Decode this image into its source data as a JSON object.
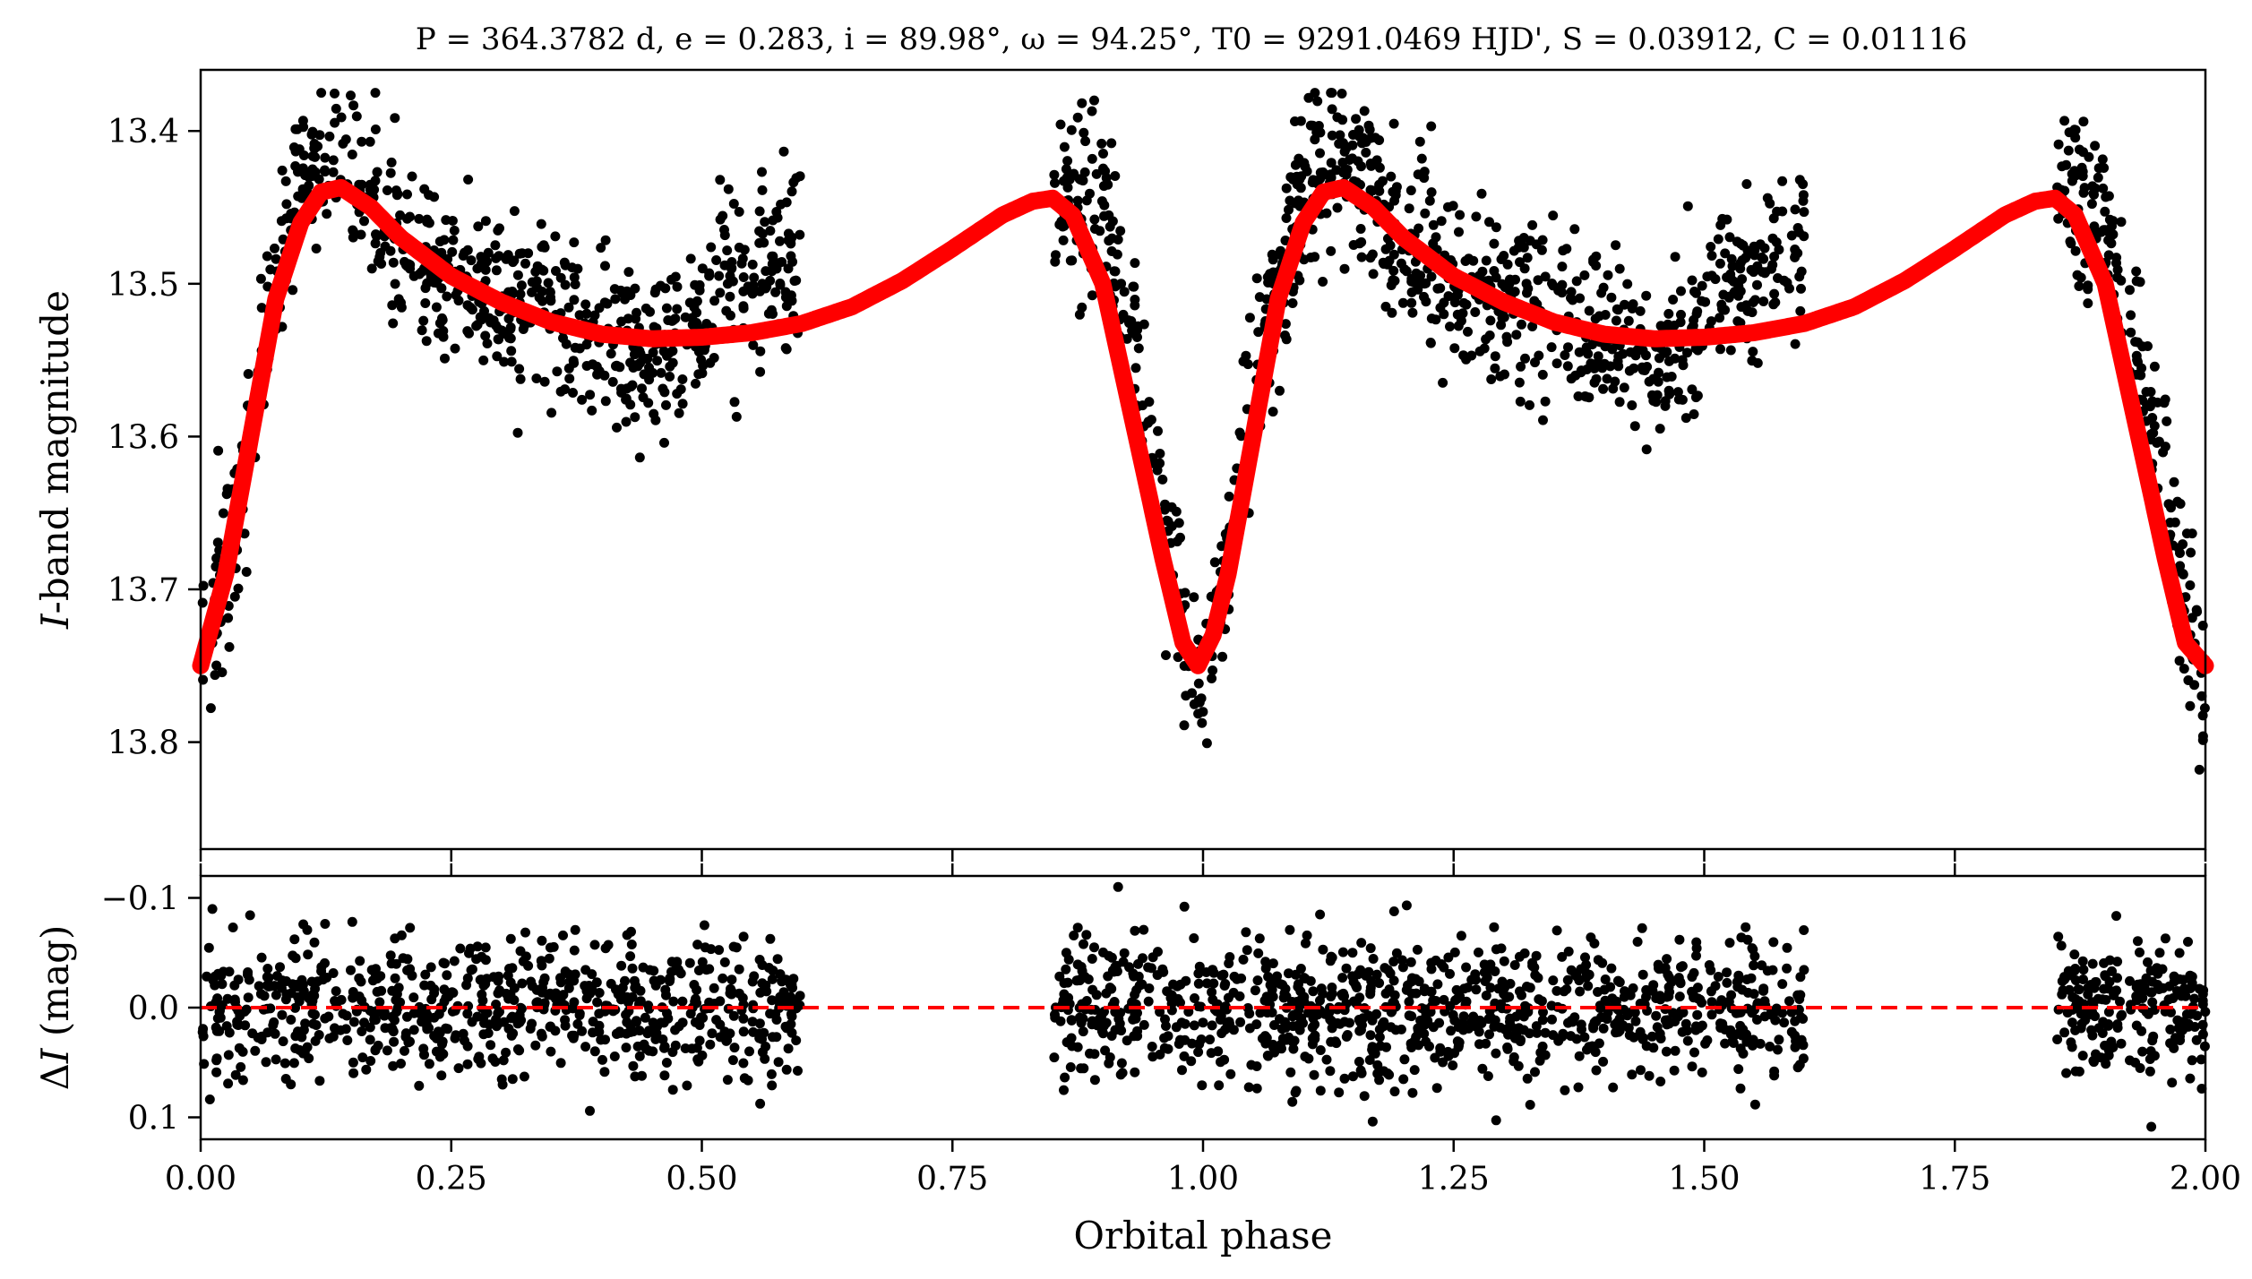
{
  "figure": {
    "title": "P = 364.3782 d, e = 0.283, i = 89.98°, ω = 94.25°, T0 = 9291.0469 HJD', S = 0.03912, C = 0.01116"
  },
  "chart_data": [
    {
      "panel": "top",
      "type": "scatter",
      "xlabel": "",
      "ylabel": "I-band magnitude",
      "xlim": [
        0.0,
        2.0
      ],
      "ylim": [
        13.87,
        13.36
      ],
      "y_inverted": true,
      "yticks": [
        "13.4",
        "13.5",
        "13.6",
        "13.7",
        "13.8"
      ],
      "ytick_values": [
        13.4,
        13.5,
        13.6,
        13.7,
        13.8
      ],
      "colors": {
        "points": "#000000",
        "model": "#ff0000"
      },
      "series": [
        {
          "type": "scatter",
          "phase_coverage": [
            [
              0.0,
              0.6
            ],
            [
              0.85,
              1.6
            ],
            [
              1.85,
              2.0
            ]
          ],
          "binned_mean": [
            {
              "x": 0.0,
              "y": 13.75
            },
            {
              "x": 0.02,
              "y": 13.7
            },
            {
              "x": 0.04,
              "y": 13.64
            },
            {
              "x": 0.06,
              "y": 13.56
            },
            {
              "x": 0.08,
              "y": 13.49
            },
            {
              "x": 0.1,
              "y": 13.44
            },
            {
              "x": 0.12,
              "y": 13.42
            },
            {
              "x": 0.14,
              "y": 13.42
            },
            {
              "x": 0.16,
              "y": 13.44
            },
            {
              "x": 0.2,
              "y": 13.47
            },
            {
              "x": 0.25,
              "y": 13.5
            },
            {
              "x": 0.3,
              "y": 13.51
            },
            {
              "x": 0.35,
              "y": 13.52
            },
            {
              "x": 0.4,
              "y": 13.54
            },
            {
              "x": 0.45,
              "y": 13.55
            },
            {
              "x": 0.48,
              "y": 13.54
            },
            {
              "x": 0.52,
              "y": 13.5
            },
            {
              "x": 0.56,
              "y": 13.5
            },
            {
              "x": 0.6,
              "y": 13.47
            },
            {
              "x": 0.86,
              "y": 13.44
            },
            {
              "x": 0.9,
              "y": 13.46
            },
            {
              "x": 0.93,
              "y": 13.54
            },
            {
              "x": 0.95,
              "y": 13.6
            },
            {
              "x": 0.97,
              "y": 13.68
            },
            {
              "x": 0.99,
              "y": 13.77
            },
            {
              "x": 1.01,
              "y": 13.74
            },
            {
              "x": 1.03,
              "y": 13.65
            },
            {
              "x": 1.05,
              "y": 13.58
            },
            {
              "x": 1.07,
              "y": 13.51
            },
            {
              "x": 1.1,
              "y": 13.44
            },
            {
              "x": 1.12,
              "y": 13.42
            },
            {
              "x": 1.14,
              "y": 13.42
            },
            {
              "x": 1.16,
              "y": 13.44
            },
            {
              "x": 1.2,
              "y": 13.47
            },
            {
              "x": 1.25,
              "y": 13.5
            },
            {
              "x": 1.3,
              "y": 13.51
            },
            {
              "x": 1.35,
              "y": 13.52
            },
            {
              "x": 1.4,
              "y": 13.54
            },
            {
              "x": 1.45,
              "y": 13.55
            },
            {
              "x": 1.48,
              "y": 13.54
            },
            {
              "x": 1.52,
              "y": 13.5
            },
            {
              "x": 1.56,
              "y": 13.5
            },
            {
              "x": 1.6,
              "y": 13.47
            },
            {
              "x": 1.86,
              "y": 13.44
            },
            {
              "x": 1.9,
              "y": 13.46
            },
            {
              "x": 1.93,
              "y": 13.54
            },
            {
              "x": 1.95,
              "y": 13.6
            },
            {
              "x": 1.97,
              "y": 13.68
            },
            {
              "x": 2.0,
              "y": 13.77
            }
          ]
        },
        {
          "type": "line",
          "points": [
            {
              "x": 0.0,
              "y": 13.75
            },
            {
              "x": 0.025,
              "y": 13.69
            },
            {
              "x": 0.05,
              "y": 13.6
            },
            {
              "x": 0.075,
              "y": 13.51
            },
            {
              "x": 0.1,
              "y": 13.46
            },
            {
              "x": 0.12,
              "y": 13.44
            },
            {
              "x": 0.14,
              "y": 13.437
            },
            {
              "x": 0.17,
              "y": 13.45
            },
            {
              "x": 0.2,
              "y": 13.47
            },
            {
              "x": 0.25,
              "y": 13.495
            },
            {
              "x": 0.3,
              "y": 13.512
            },
            {
              "x": 0.35,
              "y": 13.525
            },
            {
              "x": 0.4,
              "y": 13.533
            },
            {
              "x": 0.45,
              "y": 13.536
            },
            {
              "x": 0.5,
              "y": 13.535
            },
            {
              "x": 0.55,
              "y": 13.532
            },
            {
              "x": 0.6,
              "y": 13.526
            },
            {
              "x": 0.65,
              "y": 13.515
            },
            {
              "x": 0.7,
              "y": 13.498
            },
            {
              "x": 0.75,
              "y": 13.477
            },
            {
              "x": 0.8,
              "y": 13.455
            },
            {
              "x": 0.83,
              "y": 13.446
            },
            {
              "x": 0.85,
              "y": 13.444
            },
            {
              "x": 0.87,
              "y": 13.455
            },
            {
              "x": 0.9,
              "y": 13.5
            },
            {
              "x": 0.92,
              "y": 13.56
            },
            {
              "x": 0.94,
              "y": 13.62
            },
            {
              "x": 0.96,
              "y": 13.68
            },
            {
              "x": 0.98,
              "y": 13.735
            },
            {
              "x": 0.995,
              "y": 13.75
            },
            {
              "x": 1.01,
              "y": 13.73
            },
            {
              "x": 1.025,
              "y": 13.69
            },
            {
              "x": 1.05,
              "y": 13.6
            },
            {
              "x": 1.075,
              "y": 13.51
            },
            {
              "x": 1.1,
              "y": 13.46
            },
            {
              "x": 1.12,
              "y": 13.44
            },
            {
              "x": 1.14,
              "y": 13.437
            },
            {
              "x": 1.17,
              "y": 13.45
            },
            {
              "x": 1.2,
              "y": 13.47
            },
            {
              "x": 1.25,
              "y": 13.495
            },
            {
              "x": 1.3,
              "y": 13.512
            },
            {
              "x": 1.35,
              "y": 13.525
            },
            {
              "x": 1.4,
              "y": 13.533
            },
            {
              "x": 1.45,
              "y": 13.536
            },
            {
              "x": 1.5,
              "y": 13.535
            },
            {
              "x": 1.55,
              "y": 13.532
            },
            {
              "x": 1.6,
              "y": 13.526
            },
            {
              "x": 1.65,
              "y": 13.515
            },
            {
              "x": 1.7,
              "y": 13.498
            },
            {
              "x": 1.75,
              "y": 13.477
            },
            {
              "x": 1.8,
              "y": 13.455
            },
            {
              "x": 1.83,
              "y": 13.446
            },
            {
              "x": 1.85,
              "y": 13.444
            },
            {
              "x": 1.87,
              "y": 13.455
            },
            {
              "x": 1.9,
              "y": 13.5
            },
            {
              "x": 1.92,
              "y": 13.56
            },
            {
              "x": 1.94,
              "y": 13.62
            },
            {
              "x": 1.96,
              "y": 13.68
            },
            {
              "x": 1.98,
              "y": 13.735
            },
            {
              "x": 2.0,
              "y": 13.75
            }
          ]
        }
      ]
    },
    {
      "panel": "bottom",
      "type": "scatter",
      "xlabel": "Orbital phase",
      "ylabel": "ΔI (mag)",
      "xlim": [
        0.0,
        2.0
      ],
      "xticks": [
        "0.00",
        "0.25",
        "0.50",
        "0.75",
        "1.00",
        "1.25",
        "1.50",
        "1.75",
        "2.00"
      ],
      "xtick_values": [
        0.0,
        0.25,
        0.5,
        0.75,
        1.0,
        1.25,
        1.5,
        1.75,
        2.0
      ],
      "ylim": [
        0.12,
        -0.12
      ],
      "y_inverted": true,
      "yticks": [
        "−0.1",
        "0.0",
        "0.1"
      ],
      "ytick_values": [
        -0.1,
        0.0,
        0.1
      ],
      "reference_line": {
        "y": 0.0,
        "style": "dashed",
        "color": "#ff0000"
      },
      "residual_range": [
        -0.11,
        0.11
      ],
      "phase_coverage": [
        [
          0.0,
          0.6
        ],
        [
          0.85,
          1.6
        ],
        [
          1.85,
          2.0
        ]
      ],
      "colors": {
        "points": "#000000",
        "reference": "#ff0000"
      }
    }
  ]
}
